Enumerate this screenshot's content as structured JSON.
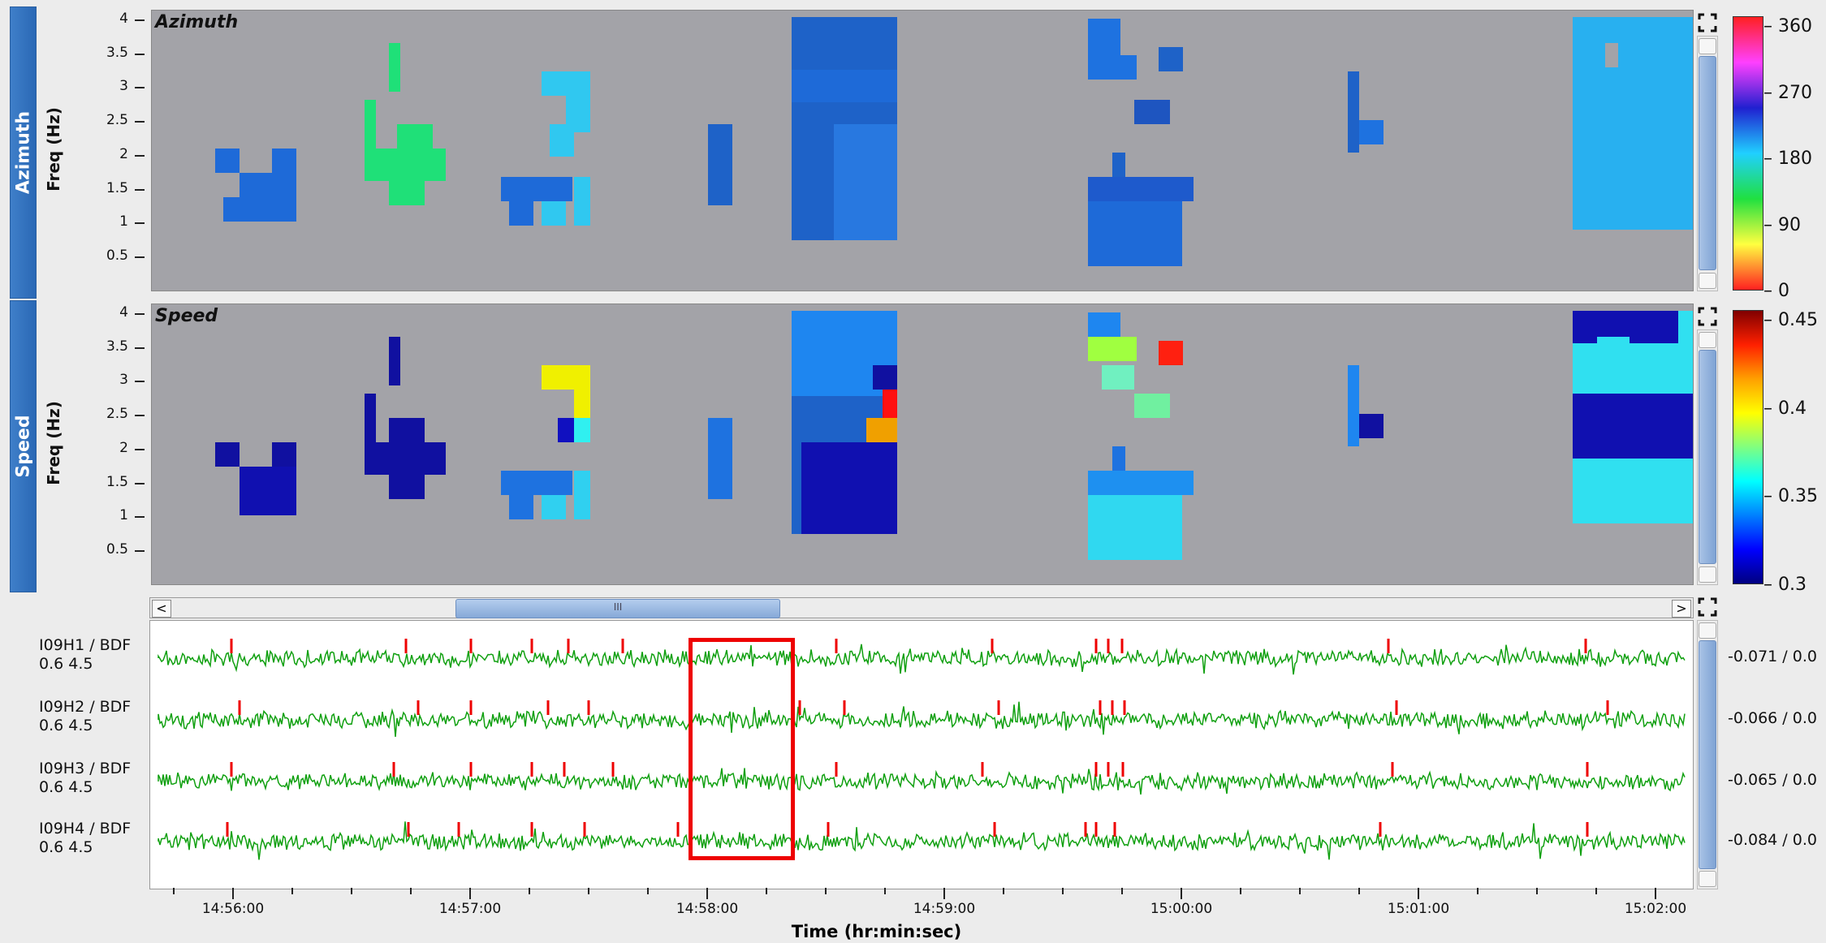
{
  "panels": [
    {
      "tab_label": "Azimuth",
      "ylabel": "Freq (Hz)",
      "title": "Azimuth",
      "yticks": [
        "4",
        "3.5",
        "3",
        "2.5",
        "2",
        "1.5",
        "1",
        "0.5"
      ],
      "colorbar": {
        "labels": [
          "360",
          "270",
          "180",
          "90",
          "0"
        ],
        "colors": [
          "#ff2020",
          "#ff40ff",
          "#2020d0",
          "#20d0ff",
          "#20e040",
          "#ffff40",
          "#ff2020"
        ]
      }
    },
    {
      "tab_label": "Speed",
      "ylabel": "Freq (Hz)",
      "title": "Speed",
      "yticks": [
        "4",
        "3.5",
        "3",
        "2.5",
        "2",
        "1.5",
        "1",
        "0.5"
      ],
      "colorbar": {
        "labels": [
          "0.45",
          "0.4",
          "0.35",
          "0.3"
        ],
        "colors": [
          "#800000",
          "#ff2000",
          "#ffa000",
          "#ffff00",
          "#80ff80",
          "#00ffff",
          "#0080ff",
          "#0000ff",
          "#000080"
        ]
      }
    }
  ],
  "hscroll": {
    "left_arrow": "<",
    "right_arrow": ">",
    "thumb_grip": "III"
  },
  "channels": [
    {
      "name": "I09H1 / BDF",
      "band": "0.6 4.5",
      "amp": "-0.071 / 0.0"
    },
    {
      "name": "I09H2 / BDF",
      "band": "0.6 4.5",
      "amp": "-0.066 / 0.0"
    },
    {
      "name": "I09H3 / BDF",
      "band": "0.6 4.5",
      "amp": "-0.065 / 0.0"
    },
    {
      "name": "I09H4 / BDF",
      "band": "0.6 4.5",
      "amp": "-0.084 / 0.0"
    }
  ],
  "time_axis": {
    "ticks": [
      "14:56:00",
      "14:57:00",
      "14:58:00",
      "14:59:00",
      "15:00:00",
      "15:01:00",
      "15:02:00"
    ],
    "label": "Time (hr:min:sec)"
  },
  "colors": {
    "wave": "#10a010",
    "pick": "#ee0000",
    "plot_bg": "#a3a3a8",
    "accent": "#2a68b5"
  }
}
